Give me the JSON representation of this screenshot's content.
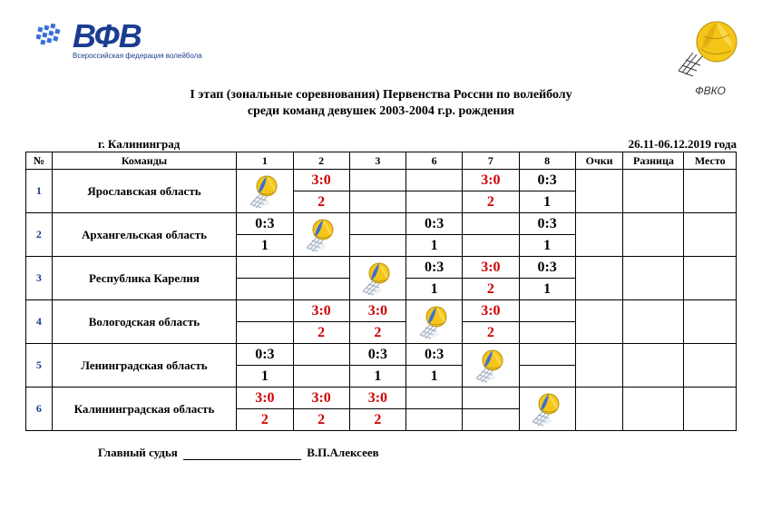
{
  "logo_left": {
    "main": "ВФВ",
    "sub": "Всероссийская федерация волейбола"
  },
  "logo_right": {
    "label": "ФВКО"
  },
  "title": {
    "line1": "I этап (зональные соревнования)  Первенства России по волейболу",
    "line2": "среди команд девушек 2003-2004 г.р. рождения"
  },
  "meta": {
    "city": "г. Калининград",
    "dates": "26.11-06.12.2019 года"
  },
  "headers": {
    "num": "№",
    "team": "Команды",
    "c1": "1",
    "c2": "2",
    "c3": "3",
    "c4": "6",
    "c5": "7",
    "c6": "8",
    "pts": "Очки",
    "diff": "Разница",
    "place": "Место"
  },
  "teams": [
    {
      "n": "1",
      "name": "Ярославская область",
      "cells": [
        {
          "diag": true
        },
        {
          "s": "3:0",
          "p": "2",
          "c": "red"
        },
        {},
        {},
        {
          "s": "3:0",
          "p": "2",
          "c": "red"
        },
        {
          "s": "0:3",
          "p": "1",
          "c": "blk"
        }
      ]
    },
    {
      "n": "2",
      "name": "Архангельская область",
      "cells": [
        {
          "s": "0:3",
          "p": "1",
          "c": "blk"
        },
        {
          "diag": true
        },
        {},
        {
          "s": "0:3",
          "p": "1",
          "c": "blk"
        },
        {},
        {
          "s": "0:3",
          "p": "1",
          "c": "blk"
        }
      ]
    },
    {
      "n": "3",
      "name": "Республика Карелия",
      "cells": [
        {},
        {},
        {
          "diag": true
        },
        {
          "s": "0:3",
          "p": "1",
          "c": "blk"
        },
        {
          "s": "3:0",
          "p": "2",
          "c": "red"
        },
        {
          "s": "0:3",
          "p": "1",
          "c": "blk"
        }
      ]
    },
    {
      "n": "4",
      "name": "Вологодская область",
      "cells": [
        {},
        {
          "s": "3:0",
          "p": "2",
          "c": "red"
        },
        {
          "s": "3:0",
          "p": "2",
          "c": "red"
        },
        {
          "diag": true
        },
        {
          "s": "3:0",
          "p": "2",
          "c": "red"
        },
        {}
      ]
    },
    {
      "n": "5",
      "name": "Ленинградская область",
      "cells": [
        {
          "s": "0:3",
          "p": "1",
          "c": "blk"
        },
        {},
        {
          "s": "0:3",
          "p": "1",
          "c": "blk"
        },
        {
          "s": "0:3",
          "p": "1",
          "c": "blk"
        },
        {
          "diag": true
        },
        {}
      ]
    },
    {
      "n": "6",
      "name": "Калининградская область",
      "cells": [
        {
          "s": "3:0",
          "p": "2",
          "c": "red"
        },
        {
          "s": "3:0",
          "p": "2",
          "c": "red"
        },
        {
          "s": "3:0",
          "p": "2",
          "c": "red"
        },
        {},
        {},
        {
          "diag": true
        }
      ]
    }
  ],
  "footer": {
    "judge_label": "Главный судья",
    "judge_name": "В.П.Алексеев"
  },
  "colors": {
    "red": "#d10000",
    "black": "#000000",
    "blue": "#1a3d8f",
    "ball_yellow": "#f5c518",
    "ball_blue": "#3a6fd8",
    "net_gray": "#9aa8b8"
  }
}
